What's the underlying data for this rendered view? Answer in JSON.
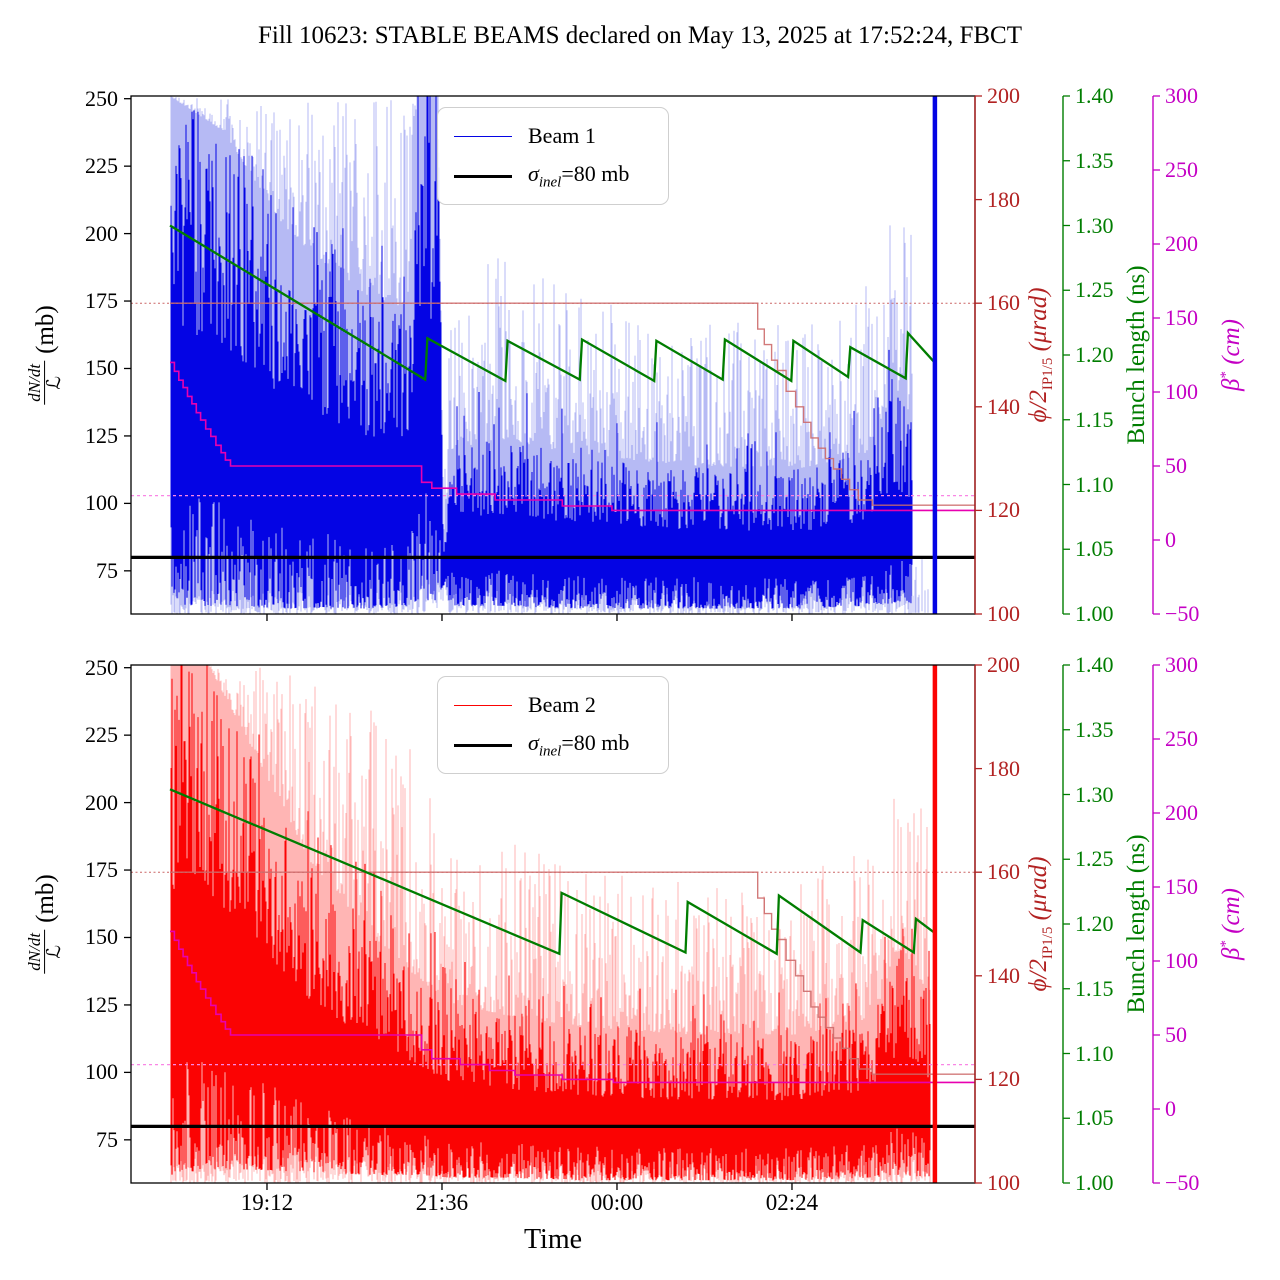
{
  "title": "Fill 10623: STABLE BEAMS declared on May 13, 2025 at 17:52:24, FBCT",
  "colors": {
    "beam1_dark": "#0404e4",
    "beam1_light": "#b6baf4",
    "beam2_dark": "#fb0303",
    "beam2_light": "#ffb5b4",
    "bunch_green": "#007d00",
    "phi_red": "#b22222",
    "phi_step_line": "#cd6b6b",
    "beta_magenta_axis": "#c400c4",
    "beta_step_line": "#e800b0",
    "beta_dotted": "#f986e5",
    "phi_dotted": "#cc6666",
    "sigma_black": "#000000"
  },
  "left_axis_label": {
    "numerator": "dN/dt",
    "denominator": "ℒ",
    "unit": "(mb)"
  },
  "phi_axis_label": {
    "symbol": "ϕ/2",
    "subscript": "IP1/5",
    "unit": " (μrad)"
  },
  "bunch_axis_label": {
    "text": "Bunch length (ns)"
  },
  "beta_axis_label": {
    "symbol": "β",
    "superscript": "*",
    "unit": " (cm)"
  },
  "xlabel": "Time",
  "legend_common": {
    "sigma_symbol": "σ",
    "sigma_sub": "inel",
    "sigma_rest": "=80 mb"
  },
  "legend_top": {
    "series": "Beam 1"
  },
  "legend_bottom": {
    "series": "Beam 2"
  },
  "axes": {
    "x": {
      "range": [
        17.335,
        28.91
      ],
      "ticks": [
        {
          "t": 19.2,
          "label": "19:12"
        },
        {
          "t": 21.6,
          "label": "21:36"
        },
        {
          "t": 24.0,
          "label": "00:00"
        },
        {
          "t": 26.4,
          "label": "02:24"
        }
      ],
      "label": "Time"
    },
    "y_left": {
      "range": [
        59,
        251
      ],
      "ticks": [
        75,
        100,
        125,
        150,
        175,
        200,
        225,
        250
      ]
    },
    "y_phi": {
      "range": [
        100,
        200
      ],
      "ticks": [
        100,
        120,
        140,
        160,
        180,
        200
      ]
    },
    "y_bunch": {
      "range": [
        1.0,
        1.4
      ],
      "ticks": [
        "1.00",
        "1.05",
        "1.10",
        "1.15",
        "1.20",
        "1.25",
        "1.30",
        "1.35",
        "1.40"
      ],
      "tick_values": [
        1.0,
        1.05,
        1.1,
        1.15,
        1.2,
        1.25,
        1.3,
        1.35,
        1.4
      ]
    },
    "y_beta": {
      "range": [
        -50,
        300
      ],
      "ticks": [
        "−50",
        "0",
        "50",
        "100",
        "150",
        "200",
        "250",
        "300"
      ],
      "tick_values": [
        -50,
        0,
        50,
        100,
        150,
        200,
        250,
        300
      ]
    }
  },
  "chart_data": [
    {
      "type": "line",
      "beam": "Beam 1",
      "sigma_inel_mb": 80,
      "phi_target_urad": 160,
      "beta_target_cm": 30,
      "phi_steps_urad": [
        [
          17.87,
          160
        ],
        [
          25.93,
          155
        ],
        [
          26.02,
          152
        ],
        [
          26.12,
          149
        ],
        [
          26.2,
          147
        ],
        [
          26.32,
          143
        ],
        [
          26.45,
          140
        ],
        [
          26.56,
          137
        ],
        [
          26.66,
          134
        ],
        [
          26.76,
          132
        ],
        [
          26.86,
          130
        ],
        [
          26.97,
          128
        ],
        [
          27.08,
          126
        ],
        [
          27.19,
          124
        ],
        [
          27.31,
          122
        ],
        [
          27.5,
          121
        ]
      ],
      "beta_steps_cm": [
        [
          17.87,
          120
        ],
        [
          17.93,
          114
        ],
        [
          17.99,
          108
        ],
        [
          18.05,
          103
        ],
        [
          18.11,
          97
        ],
        [
          18.17,
          92
        ],
        [
          18.23,
          86
        ],
        [
          18.29,
          81
        ],
        [
          18.36,
          75
        ],
        [
          18.43,
          70
        ],
        [
          18.5,
          64
        ],
        [
          18.57,
          59
        ],
        [
          18.63,
          54
        ],
        [
          18.7,
          50
        ],
        [
          21.32,
          39
        ],
        [
          21.46,
          35
        ],
        [
          21.8,
          31
        ],
        [
          22.33,
          27
        ],
        [
          23.25,
          23
        ],
        [
          23.93,
          20
        ]
      ],
      "bunch_length_ns": [
        [
          17.87,
          1.3
        ],
        [
          21.37,
          1.181
        ],
        [
          21.4,
          1.213
        ],
        [
          22.47,
          1.18
        ],
        [
          22.5,
          1.211
        ],
        [
          23.49,
          1.181
        ],
        [
          23.52,
          1.212
        ],
        [
          24.51,
          1.18
        ],
        [
          24.54,
          1.211
        ],
        [
          25.45,
          1.181
        ],
        [
          25.48,
          1.212
        ],
        [
          26.39,
          1.18
        ],
        [
          26.42,
          1.211
        ],
        [
          27.17,
          1.183
        ],
        [
          27.2,
          1.206
        ],
        [
          27.96,
          1.182
        ],
        [
          27.99,
          1.217
        ],
        [
          28.36,
          1.194
        ]
      ],
      "noise_envelope_mb": [
        [
          17.87,
          59,
          251,
          62,
          251
        ],
        [
          18.6,
          59,
          251,
          62,
          238
        ],
        [
          19.5,
          59,
          248,
          61,
          200
        ],
        [
          20.5,
          59,
          251,
          61,
          178
        ],
        [
          21.15,
          59,
          251,
          62,
          172
        ],
        [
          21.25,
          59,
          251,
          64,
          251
        ],
        [
          21.55,
          59,
          251,
          64,
          251
        ],
        [
          21.62,
          59,
          100,
          70,
          88
        ],
        [
          21.72,
          59,
          172,
          62,
          120
        ],
        [
          22.4,
          59,
          200,
          62,
          124
        ],
        [
          23.5,
          59,
          176,
          61,
          118
        ],
        [
          25.0,
          59,
          168,
          61,
          114
        ],
        [
          26.5,
          59,
          166,
          61,
          113
        ],
        [
          27.4,
          59,
          180,
          62,
          118
        ],
        [
          27.8,
          59,
          208,
          63,
          142
        ],
        [
          28.05,
          59,
          215,
          63,
          132
        ]
      ],
      "sparse_tail": [
        28.05,
        28.3
      ],
      "dump_spike_t": 28.36,
      "seed": 11
    },
    {
      "type": "line",
      "beam": "Beam 2",
      "sigma_inel_mb": 80,
      "phi_target_urad": 160,
      "beta_target_cm": 30,
      "phi_steps_urad": [
        [
          17.87,
          160
        ],
        [
          25.93,
          155
        ],
        [
          26.02,
          152
        ],
        [
          26.12,
          149
        ],
        [
          26.2,
          147
        ],
        [
          26.32,
          143
        ],
        [
          26.45,
          140
        ],
        [
          26.56,
          137
        ],
        [
          26.66,
          134
        ],
        [
          26.76,
          132
        ],
        [
          26.86,
          130
        ],
        [
          26.97,
          128
        ],
        [
          27.08,
          126
        ],
        [
          27.19,
          124
        ],
        [
          27.31,
          122
        ],
        [
          27.5,
          121
        ]
      ],
      "beta_steps_cm": [
        [
          17.87,
          120
        ],
        [
          17.93,
          114
        ],
        [
          17.99,
          108
        ],
        [
          18.05,
          103
        ],
        [
          18.11,
          97
        ],
        [
          18.17,
          92
        ],
        [
          18.23,
          86
        ],
        [
          18.29,
          81
        ],
        [
          18.36,
          75
        ],
        [
          18.43,
          70
        ],
        [
          18.5,
          64
        ],
        [
          18.57,
          59
        ],
        [
          18.63,
          54
        ],
        [
          18.7,
          50
        ],
        [
          21.32,
          40
        ],
        [
          21.46,
          34
        ],
        [
          21.85,
          30
        ],
        [
          22.25,
          26
        ],
        [
          22.6,
          23
        ],
        [
          23.25,
          20
        ],
        [
          23.95,
          18
        ]
      ],
      "bunch_length_ns": [
        [
          17.87,
          1.304
        ],
        [
          23.21,
          1.177
        ],
        [
          23.24,
          1.224
        ],
        [
          24.94,
          1.178
        ],
        [
          24.97,
          1.217
        ],
        [
          26.19,
          1.177
        ],
        [
          26.22,
          1.222
        ],
        [
          27.34,
          1.178
        ],
        [
          27.37,
          1.203
        ],
        [
          28.07,
          1.178
        ],
        [
          28.1,
          1.204
        ],
        [
          28.36,
          1.193
        ]
      ],
      "noise_envelope_mb": [
        [
          17.87,
          59,
          251,
          62,
          251
        ],
        [
          18.4,
          59,
          251,
          64,
          251
        ],
        [
          19.0,
          59,
          251,
          64,
          220
        ],
        [
          19.8,
          59,
          246,
          63,
          178
        ],
        [
          20.6,
          59,
          236,
          62,
          152
        ],
        [
          21.3,
          59,
          216,
          62,
          134
        ],
        [
          21.7,
          59,
          196,
          61,
          126
        ],
        [
          22.5,
          59,
          186,
          61,
          121
        ],
        [
          23.5,
          59,
          178,
          60,
          117
        ],
        [
          25.0,
          59,
          170,
          60,
          114
        ],
        [
          26.5,
          59,
          172,
          60,
          114
        ],
        [
          27.5,
          59,
          188,
          61,
          120
        ],
        [
          27.9,
          59,
          212,
          62,
          147
        ],
        [
          28.3,
          59,
          192,
          61,
          126
        ]
      ],
      "sparse_tail": null,
      "dump_spike_t": 28.36,
      "seed": 23
    }
  ]
}
